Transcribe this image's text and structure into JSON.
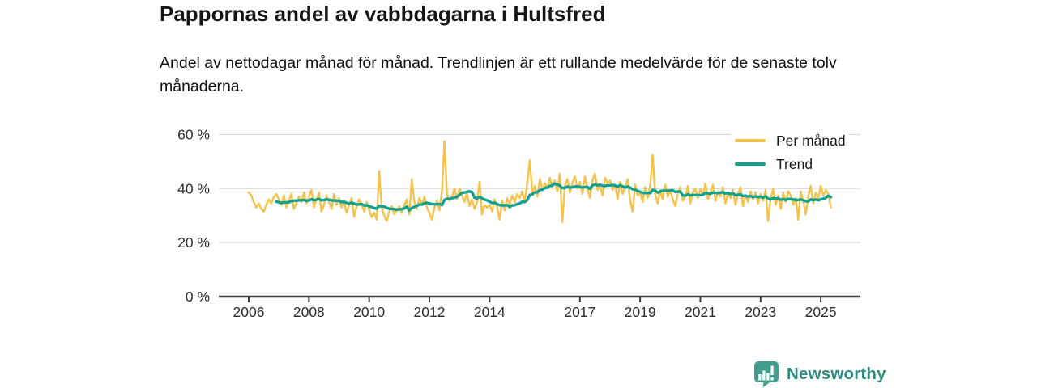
{
  "header": {
    "title": "Pappornas andel av vabbdagarna i Hultsfred",
    "subtitle": "Andel av nettodagar månad för månad. Trendlinjen är ett rullande medelvärde för de senaste tolv månaderna."
  },
  "chart_data": {
    "type": "line",
    "title": "Pappornas andel av vabbdagarna i Hultsfred",
    "xlabel": "",
    "ylabel": "",
    "unit": "%",
    "ylim": [
      0,
      60
    ],
    "grid": "horizontal",
    "legend_position": "top-right",
    "y_ticks": [
      0,
      20,
      40,
      60
    ],
    "y_tick_labels": [
      "0 %",
      "20 %",
      "40 %",
      "60 %"
    ],
    "x_tick_labels": [
      "2006",
      "2008",
      "2010",
      "2012",
      "2014",
      "2017",
      "2019",
      "2021",
      "2023",
      "2025"
    ],
    "x_monthly_start": "2006-01",
    "x_monthly_end": "2025-05",
    "legend": [
      {
        "label": "Per månad",
        "color": "#F5C24C"
      },
      {
        "label": "Trend",
        "color": "#12A18F"
      }
    ],
    "series": [
      {
        "name": "Per månad",
        "values": [
          38.5,
          37.5,
          35,
          33,
          34.5,
          32.5,
          31.5,
          34,
          36,
          34.5,
          37,
          38,
          36,
          34,
          37.5,
          33,
          35.5,
          38,
          32.5,
          34.5,
          37,
          35,
          38.5,
          34.5,
          37,
          39.5,
          33,
          36,
          38.5,
          31.5,
          34,
          37.5,
          35,
          32.5,
          38,
          34,
          36.5,
          33,
          35.5,
          31,
          34,
          36.5,
          29.5,
          33.5,
          36,
          34,
          31.5,
          35,
          32,
          29.5,
          31,
          28.5,
          46.5,
          33,
          30,
          28,
          31.5,
          33.5,
          30.5,
          32,
          33.5,
          31,
          34,
          36,
          30.5,
          43.5,
          35,
          32.5,
          36.5,
          34,
          37,
          33,
          31,
          28.5,
          33,
          35.5,
          32,
          39,
          57.5,
          38,
          35.5,
          37,
          40,
          36,
          40,
          37.5,
          35,
          38.5,
          33.5,
          36,
          32.5,
          35,
          42.5,
          30.5,
          34,
          33,
          34,
          31.5,
          36,
          33,
          28.5,
          35.5,
          32,
          36.5,
          34,
          37.5,
          35,
          38,
          36.5,
          39,
          35,
          42,
          50.5,
          38.5,
          41,
          37,
          43.5,
          39.5,
          42,
          40,
          44,
          40.5,
          43,
          39,
          45.5,
          27.5,
          41,
          43.5,
          38.5,
          42,
          44.5,
          40,
          42.5,
          38,
          44.5,
          40,
          36.5,
          43,
          45.5,
          39.5,
          41,
          37.5,
          44,
          42,
          43,
          39.5,
          41.5,
          36,
          42.5,
          38,
          40.5,
          43.5,
          35.5,
          31.5,
          41.5,
          37.5,
          38.5,
          35,
          40.5,
          36.5,
          41,
          52.5,
          38,
          34.5,
          39.5,
          36,
          41.5,
          37,
          39.5,
          36,
          33.5,
          38,
          40.5,
          35.5,
          37,
          41,
          34.5,
          38.5,
          40,
          36.5,
          40,
          37.5,
          42,
          36,
          38.5,
          41.5,
          35.5,
          39,
          37,
          40.5,
          34.5,
          38,
          36.5,
          39.5,
          34,
          38,
          40.5,
          33.5,
          37.5,
          35,
          39,
          36,
          38.5,
          34.5,
          38,
          35.5,
          39.5,
          28,
          36.5,
          40,
          34,
          37.5,
          32.5,
          38.5,
          35,
          39,
          37.5,
          34,
          36.5,
          28.5,
          39,
          35.5,
          30.5,
          37,
          41,
          34.5,
          38.5,
          36,
          41,
          37.5,
          39.5,
          38,
          33
        ]
      },
      {
        "name": "Trend",
        "definition": "rullande 12-månaders medelvärde av Per månad"
      }
    ]
  },
  "footer": {
    "brand": "Newsworthy",
    "logo_icon": "newsworthy-bar-chart-bubble-icon"
  },
  "colors": {
    "monthly_line": "#F5C24C",
    "trend_line": "#12A18F",
    "gridline": "#dcdcdc",
    "axis": "#3d3d3d",
    "axis_text": "#2e2e2e",
    "brand_teal": "#2f8c80",
    "logo_fill": "#459c8d"
  }
}
